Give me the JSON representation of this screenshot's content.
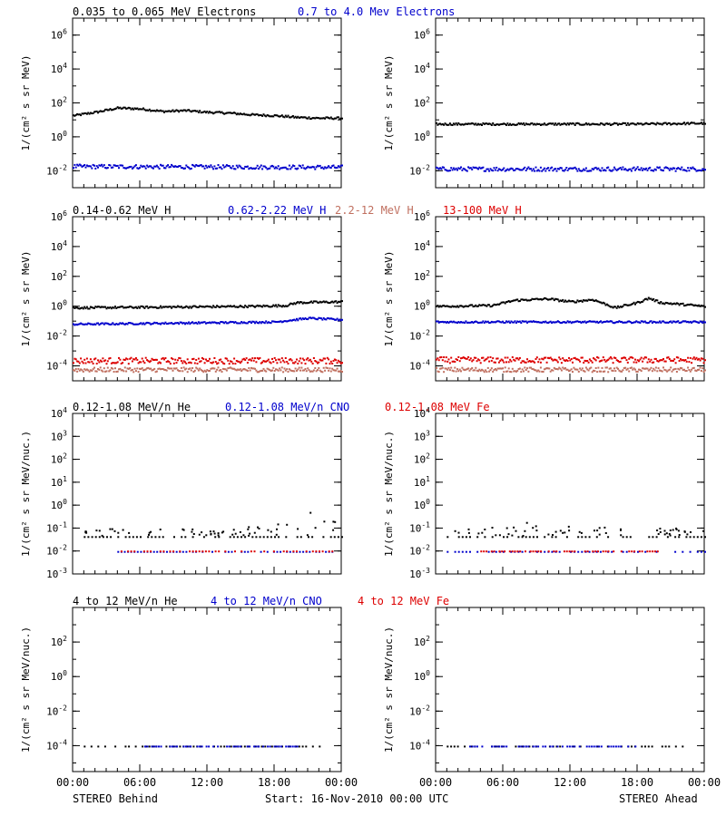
{
  "chart_data": [
    {
      "type": "scatter",
      "row": 0,
      "panels": [
        "STEREO Behind",
        "STEREO Ahead"
      ],
      "ylabel": "1/(cm² s sr MeV)",
      "yscale": "log",
      "ylim_exp": [
        -3,
        7
      ],
      "yticks": [
        {
          "exp": 6,
          "label": "10^6"
        },
        {
          "exp": 4,
          "label": "10^4"
        },
        {
          "exp": 2,
          "label": "10^2"
        },
        {
          "exp": 0,
          "label": "10^0"
        },
        {
          "exp": -2,
          "label": "10^-2"
        }
      ],
      "legend": [
        {
          "text": "0.035 to 0.065 MeV Electrons",
          "color": "#000000"
        },
        {
          "text": "0.7 to 4.0 Mev Electrons",
          "color": "#0000cc"
        }
      ],
      "series": [
        {
          "name": "0.035 to 0.065 MeV Electrons",
          "color": "#000000",
          "behind": [
            [
              0,
              1.3
            ],
            [
              2,
              1.5
            ],
            [
              4,
              1.75
            ],
            [
              6,
              1.7
            ],
            [
              8,
              1.55
            ],
            [
              10,
              1.6
            ],
            [
              12,
              1.5
            ],
            [
              14,
              1.45
            ],
            [
              16,
              1.35
            ],
            [
              18,
              1.3
            ],
            [
              20,
              1.2
            ],
            [
              22,
              1.15
            ],
            [
              24,
              1.15
            ]
          ],
          "ahead": [
            [
              0,
              0.8
            ],
            [
              6,
              0.8
            ],
            [
              12,
              0.8
            ],
            [
              18,
              0.8
            ],
            [
              24,
              0.85
            ]
          ],
          "spread": 0.06
        },
        {
          "name": "0.7 to 4.0 Mev Electrons",
          "color": "#0000cc",
          "behind": [
            [
              0,
              -1.7
            ],
            [
              24,
              -1.75
            ]
          ],
          "ahead": [
            [
              0,
              -1.85
            ],
            [
              24,
              -1.85
            ]
          ],
          "spread": 0.12
        }
      ]
    },
    {
      "type": "scatter",
      "row": 1,
      "panels": [
        "STEREO Behind",
        "STEREO Ahead"
      ],
      "ylabel": "1/(cm² s sr MeV)",
      "yscale": "log",
      "ylim_exp": [
        -5,
        6
      ],
      "yticks": [
        {
          "exp": 6,
          "label": "10^6"
        },
        {
          "exp": 4,
          "label": "10^4"
        },
        {
          "exp": 2,
          "label": "10^2"
        },
        {
          "exp": 0,
          "label": "10^0"
        },
        {
          "exp": -2,
          "label": "10^-2"
        },
        {
          "exp": -4,
          "label": "10^-4"
        }
      ],
      "legend": [
        {
          "text": "0.14-0.62 MeV H",
          "color": "#000000"
        },
        {
          "text": "0.62-2.22 MeV H",
          "color": "#0000cc"
        },
        {
          "text": "2.2-12 MeV H",
          "color": "#c07060"
        },
        {
          "text": "13-100 MeV H",
          "color": "#dd0000"
        }
      ],
      "series": [
        {
          "name": "0.14-0.62 MeV H",
          "color": "#000000",
          "behind": [
            [
              0,
              -0.05
            ],
            [
              8,
              0.0
            ],
            [
              16,
              0.05
            ],
            [
              19,
              0.1
            ],
            [
              20,
              0.3
            ],
            [
              24,
              0.35
            ]
          ],
          "ahead": [
            [
              0,
              0.05
            ],
            [
              5,
              0.1
            ],
            [
              7,
              0.45
            ],
            [
              10,
              0.55
            ],
            [
              12,
              0.35
            ],
            [
              14,
              0.5
            ],
            [
              16,
              -0.05
            ],
            [
              18,
              0.3
            ],
            [
              19,
              0.6
            ],
            [
              20,
              0.3
            ],
            [
              24,
              0.05
            ]
          ],
          "spread": 0.07
        },
        {
          "name": "0.62-2.22 MeV H",
          "color": "#0000cc",
          "behind": [
            [
              0,
              -1.15
            ],
            [
              18,
              -1.0
            ],
            [
              21,
              -0.75
            ],
            [
              24,
              -0.85
            ]
          ],
          "ahead": [
            [
              0,
              -1.0
            ],
            [
              24,
              -1.0
            ]
          ],
          "spread": 0.06
        },
        {
          "name": "2.2-12 MeV H",
          "color": "#c07060",
          "behind": [
            [
              0,
              -4.2
            ],
            [
              24,
              -4.2
            ]
          ],
          "ahead": [
            [
              0,
              -4.2
            ],
            [
              24,
              -4.2
            ]
          ],
          "spread": 0.15
        },
        {
          "name": "13-100 MeV H",
          "color": "#dd0000",
          "behind": [
            [
              0,
              -3.6
            ],
            [
              24,
              -3.6
            ]
          ],
          "ahead": [
            [
              0,
              -3.55
            ],
            [
              24,
              -3.55
            ]
          ],
          "spread": 0.2
        }
      ]
    },
    {
      "type": "scatter",
      "row": 2,
      "panels": [
        "STEREO Behind",
        "STEREO Ahead"
      ],
      "ylabel": "1/(cm² s sr MeV/nuc.)",
      "yscale": "log",
      "ylim_exp": [
        -3,
        4
      ],
      "yticks": [
        {
          "exp": 4,
          "label": "10^4"
        },
        {
          "exp": 3,
          "label": "10^3"
        },
        {
          "exp": 2,
          "label": "10^2"
        },
        {
          "exp": 1,
          "label": "10^1"
        },
        {
          "exp": 0,
          "label": "10^0"
        },
        {
          "exp": -1,
          "label": "10^-1"
        },
        {
          "exp": -2,
          "label": "10^-2"
        },
        {
          "exp": -3,
          "label": "10^-3"
        }
      ],
      "legend": [
        {
          "text": "0.12-1.08 MeV/n He",
          "color": "#000000"
        },
        {
          "text": "0.12-1.08 MeV/n CNO",
          "color": "#0000cc"
        },
        {
          "text": "0.12-1.08 MeV Fe",
          "color": "#dd0000"
        }
      ],
      "series": [
        {
          "name": "0.12-1.08 MeV/n He",
          "color": "#000000",
          "behind": [
            [
              1,
              -1.35
            ],
            [
              24,
              -1.35
            ]
          ],
          "ahead": [
            [
              1,
              -1.35
            ],
            [
              24,
              -1.35
            ]
          ],
          "scatter_upper": {
            "behind": [
              [
                1,
                -1.0
              ],
              [
                14,
                -1.0
              ],
              [
                18,
                -0.6
              ],
              [
                21,
                -0.3
              ],
              [
                24,
                -0.2
              ]
            ],
            "ahead": [
              [
                1,
                -1.0
              ],
              [
                6,
                -0.9
              ],
              [
                9,
                -0.6
              ],
              [
                12,
                -0.9
              ],
              [
                24,
                -1.0
              ]
            ]
          },
          "spread": 0.0
        },
        {
          "name": "0.12-1.08 MeV/n CNO",
          "color": "#0000cc",
          "behind": [
            [
              4,
              -2.0
            ],
            [
              24,
              -2.0
            ]
          ],
          "ahead": [
            [
              1,
              -2.0
            ],
            [
              24,
              -2.0
            ]
          ],
          "spread": 0.0
        },
        {
          "name": "0.12-1.08 MeV Fe",
          "color": "#dd0000",
          "behind": [
            [
              4,
              -1.98
            ],
            [
              24,
              -1.98
            ]
          ],
          "ahead": [
            [
              4,
              -1.98
            ],
            [
              20,
              -1.98
            ]
          ],
          "spread": 0.0
        }
      ]
    },
    {
      "type": "scatter",
      "row": 3,
      "panels": [
        "STEREO Behind",
        "STEREO Ahead"
      ],
      "ylabel": "1/(cm² s sr MeV/nuc.)",
      "yscale": "log",
      "ylim_exp": [
        -5.5,
        4
      ],
      "yticks": [
        {
          "exp": 2,
          "label": "10^2"
        },
        {
          "exp": 0,
          "label": "10^0"
        },
        {
          "exp": -2,
          "label": "10^-2"
        },
        {
          "exp": -4,
          "label": "10^-4"
        }
      ],
      "legend": [
        {
          "text": "4 to 12 MeV/n He",
          "color": "#000000"
        },
        {
          "text": "4 to 12 MeV/n CNO",
          "color": "#0000cc"
        },
        {
          "text": "4 to 12 MeV Fe",
          "color": "#dd0000"
        }
      ],
      "series": [
        {
          "name": "4 to 12 MeV/n He",
          "color": "#000000",
          "behind": [
            [
              1,
              -4.0
            ],
            [
              22,
              -4.0
            ]
          ],
          "ahead": [
            [
              1,
              -4.0
            ],
            [
              22,
              -4.0
            ]
          ],
          "spread": 0.0
        },
        {
          "name": "4 to 12 MeV/n CNO",
          "color": "#0000cc",
          "behind": [
            [
              6,
              -4.0
            ],
            [
              20,
              -4.0
            ]
          ],
          "ahead": [
            [
              3,
              -4.0
            ],
            [
              18,
              -4.0
            ]
          ],
          "spread": 0.0
        }
      ]
    }
  ],
  "xaxis": {
    "range_hours": [
      0,
      24
    ],
    "ticks": [
      "00:00",
      "06:00",
      "12:00",
      "18:00",
      "00:00"
    ]
  },
  "footer": {
    "left": "STEREO Behind",
    "center": "Start: 16-Nov-2010 00:00 UTC",
    "right": "STEREO Ahead"
  }
}
